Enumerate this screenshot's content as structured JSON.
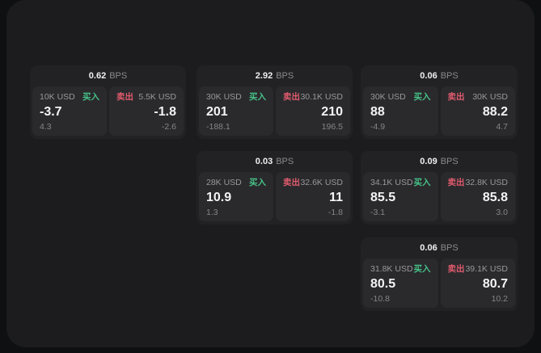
{
  "labels": {
    "bps": "BPS",
    "buy": "买入",
    "sell": "卖出"
  },
  "colors": {
    "panel_bg": "#1c1c1e",
    "card_bg": "#222225",
    "tile_bg": "#2a2a2d",
    "buy_green": "#46c287",
    "sell_red": "#e05b6d"
  },
  "cards": [
    {
      "bps": "0.62",
      "buy": {
        "size": "10K USD",
        "price": "-3.7",
        "delta": "4.3"
      },
      "sell": {
        "size": "5.5K USD",
        "price": "-1.8",
        "delta": "-2.6"
      }
    },
    {
      "bps": "2.92",
      "buy": {
        "size": "30K USD",
        "price": "201",
        "delta": "-188.1"
      },
      "sell": {
        "size": "30.1K USD",
        "price": "210",
        "delta": "196.5"
      }
    },
    {
      "bps": "0.06",
      "buy": {
        "size": "30K USD",
        "price": "88",
        "delta": "-4.9"
      },
      "sell": {
        "size": "30K USD",
        "price": "88.2",
        "delta": "4.7"
      }
    },
    {
      "bps": "0.03",
      "buy": {
        "size": "28K USD",
        "price": "10.9",
        "delta": "1.3"
      },
      "sell": {
        "size": "32.6K USD",
        "price": "11",
        "delta": "-1.8"
      }
    },
    {
      "bps": "0.09",
      "buy": {
        "size": "34.1K USD",
        "price": "85.5",
        "delta": "-3.1"
      },
      "sell": {
        "size": "32.8K USD",
        "price": "85.8",
        "delta": "3.0"
      }
    },
    {
      "bps": "0.06",
      "buy": {
        "size": "31.8K USD",
        "price": "80.5",
        "delta": "-10.8"
      },
      "sell": {
        "size": "39.1K USD",
        "price": "80.7",
        "delta": "10.2"
      }
    }
  ]
}
